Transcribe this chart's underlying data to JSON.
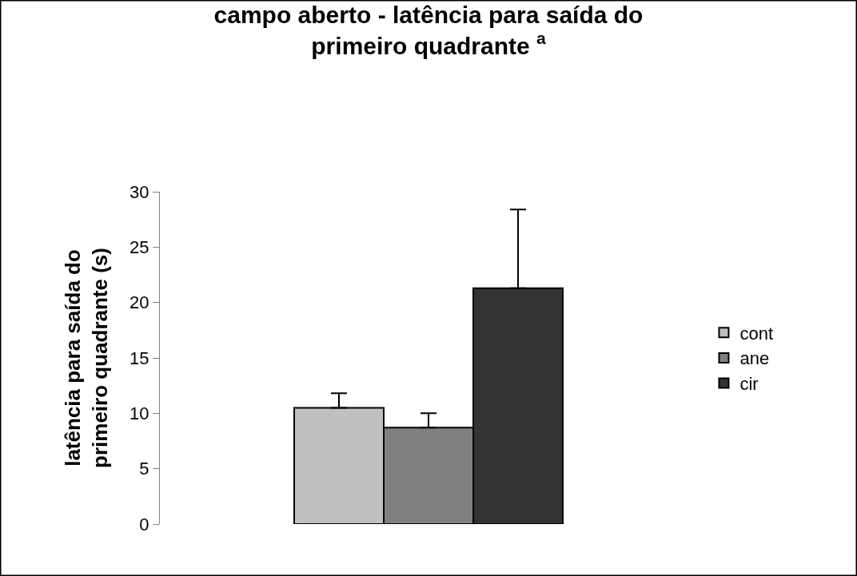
{
  "chart_data": {
    "type": "bar",
    "title": "campo aberto - latência para saída do primeiro quadrante $^{a}$",
    "ylabel": "latência para saída do primeiro quadrante (s)",
    "categories": [
      null
    ],
    "series": [
      {
        "name": "cont",
        "color": "#c0c0c0",
        "values": [
          10.5
        ],
        "errors": [
          [
            10.5,
            11.8
          ]
        ]
      },
      {
        "name": "ane",
        "color": "#808080",
        "values": [
          8.7
        ],
        "errors": [
          [
            8.7,
            10.0
          ]
        ]
      },
      {
        "name": "cir",
        "color": "#333333",
        "values": [
          21.3
        ],
        "errors": [
          [
            21.3,
            28.4
          ]
        ]
      }
    ],
    "ylim": [
      0,
      30
    ],
    "yticks": [
      0,
      5,
      10,
      15,
      20,
      25,
      30
    ],
    "legend": "right",
    "tick_labels": "y"
  }
}
